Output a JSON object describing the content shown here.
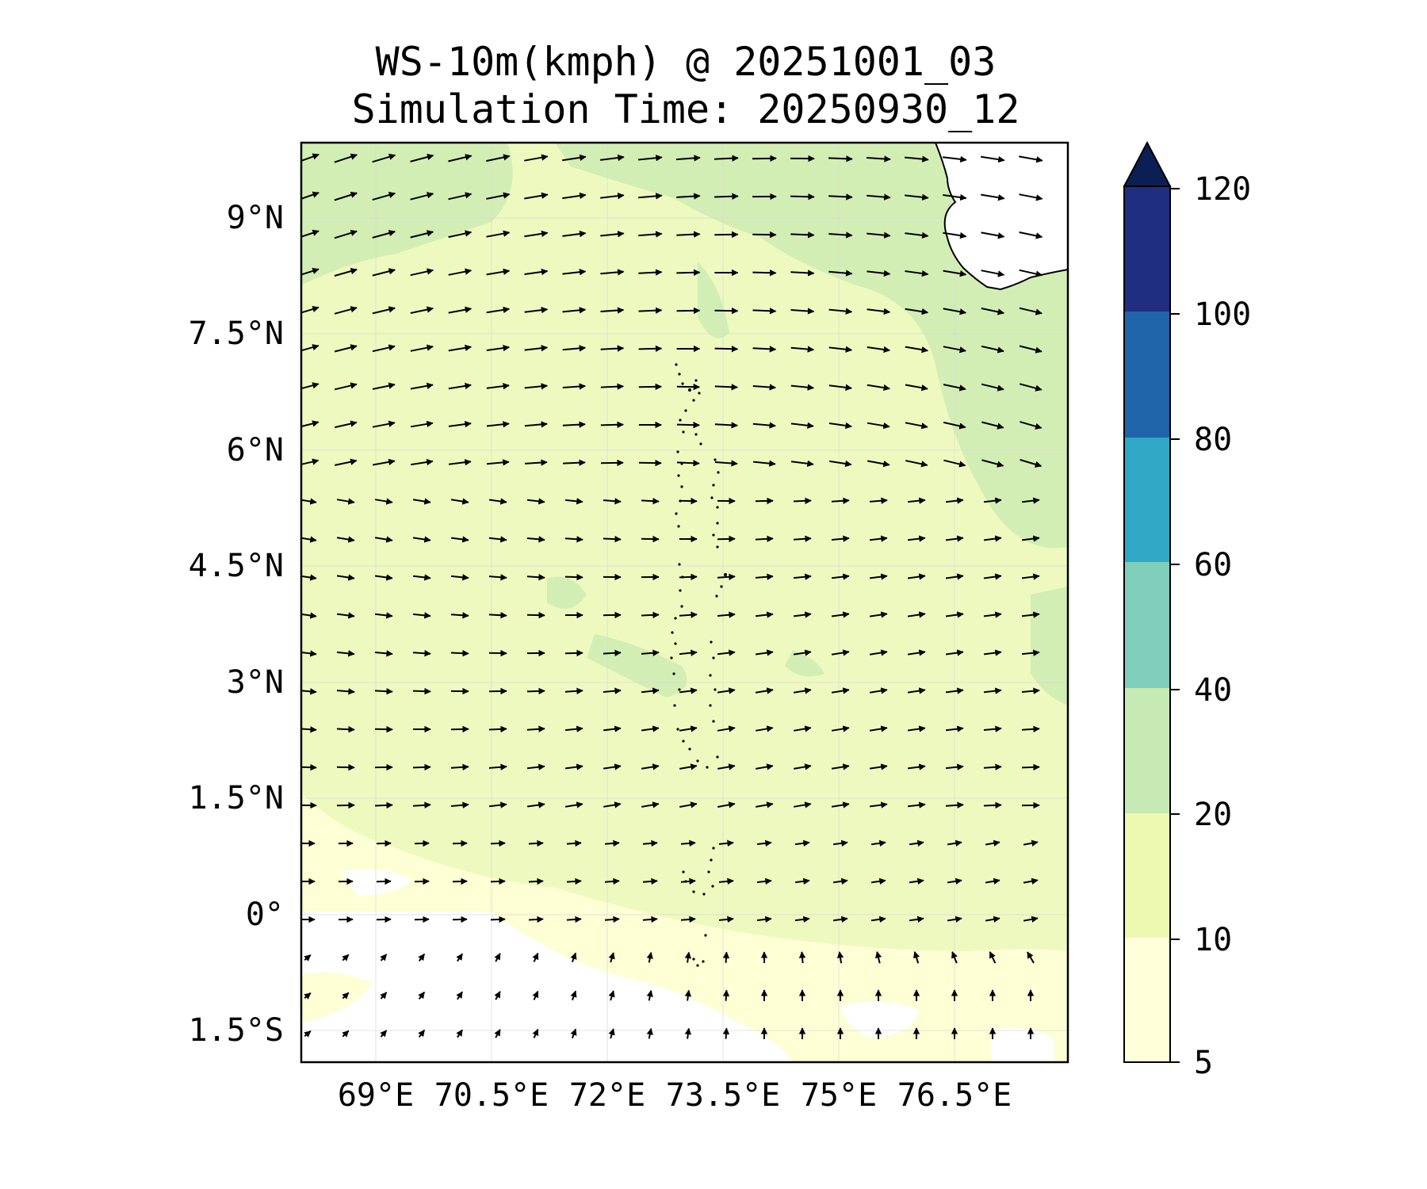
{
  "title": {
    "line1": "WS-10m(kmph) @ 20251001_03",
    "line2": "Simulation Time: 20250930_12"
  },
  "map": {
    "lat_labels": [
      "9°N",
      "7.5°N",
      "6°N",
      "4.5°N",
      "3°N",
      "1.5°N",
      "0°",
      "1.5°S"
    ],
    "lon_labels": [
      "69°E",
      "70.5°E",
      "72°E",
      "73.5°E",
      "75°E",
      "76.5°E"
    ]
  },
  "colorbar": {
    "ticks": [
      "120",
      "100",
      "80",
      "60",
      "40",
      "20",
      "10",
      "5"
    ],
    "colors": [
      "#ffffd9",
      "#edf8b1",
      "#c7e9b4",
      "#7fcdbb",
      "#2ea8c5",
      "#2064aa",
      "#1f2e80"
    ],
    "extend_color": "#0b1f54"
  }
}
